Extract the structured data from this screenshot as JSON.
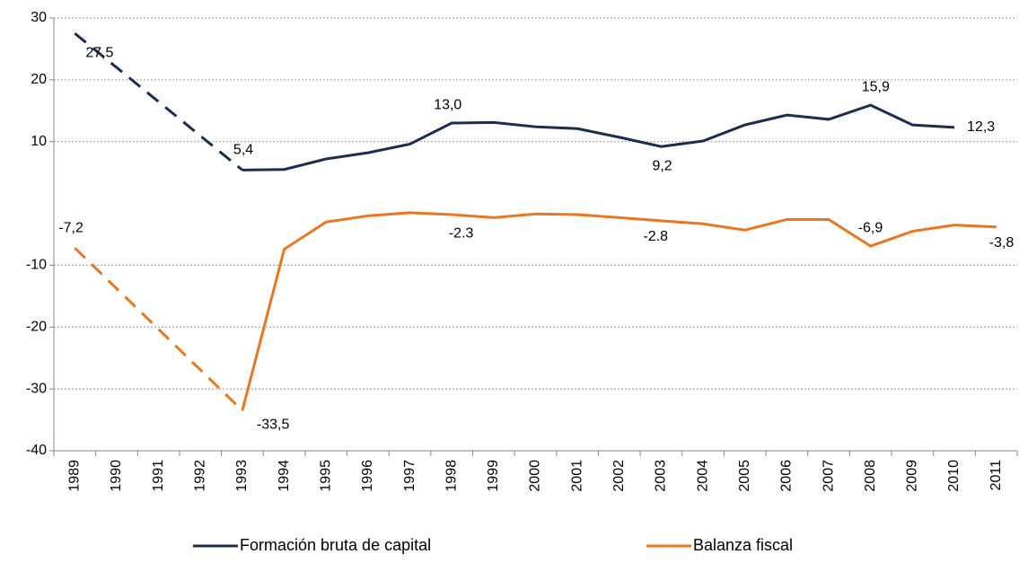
{
  "chart_data": {
    "type": "line",
    "categories": [
      "1989",
      "1990",
      "1991",
      "1992",
      "1993",
      "1994",
      "1995",
      "1996",
      "1997",
      "1998",
      "1999",
      "2000",
      "2001",
      "2002",
      "2003",
      "2004",
      "2005",
      "2006",
      "2007",
      "2008",
      "2009",
      "2010",
      "2011"
    ],
    "series": [
      {
        "name": "Formación bruta de capital",
        "color": "#1f2d4d",
        "values": [
          27.5,
          null,
          null,
          null,
          5.4,
          5.5,
          7.2,
          8.2,
          9.6,
          13.0,
          13.1,
          12.4,
          12.1,
          10.7,
          9.2,
          10.1,
          12.7,
          14.3,
          13.6,
          15.9,
          12.7,
          12.3,
          null
        ],
        "value_labels": [
          "27,5",
          null,
          null,
          null,
          "5,4",
          null,
          null,
          null,
          null,
          "13,0",
          null,
          null,
          null,
          null,
          "9,2",
          null,
          null,
          null,
          null,
          "15,9",
          null,
          "12,3",
          null
        ]
      },
      {
        "name": "Balanza fiscal",
        "color": "#e87722",
        "values": [
          -7.2,
          null,
          null,
          null,
          -33.5,
          -7.4,
          -3.0,
          -2.0,
          -1.5,
          -1.8,
          -2.3,
          -1.7,
          -1.8,
          -2.3,
          -2.8,
          -3.3,
          -4.3,
          -2.6,
          -2.6,
          -6.9,
          -4.5,
          -3.5,
          -3.8
        ],
        "value_labels": [
          "-7,2",
          null,
          null,
          null,
          "-33,5",
          null,
          null,
          null,
          null,
          null,
          "-2.3",
          null,
          null,
          null,
          "-2.8",
          null,
          null,
          null,
          null,
          "-6,9",
          null,
          null,
          "-3,8"
        ]
      }
    ],
    "ylim": [
      -40,
      30
    ],
    "yticks": [
      -40,
      -30,
      -20,
      -10,
      10,
      20,
      30
    ],
    "grid": true,
    "gap_style": "dashed",
    "legend": "bottom"
  }
}
